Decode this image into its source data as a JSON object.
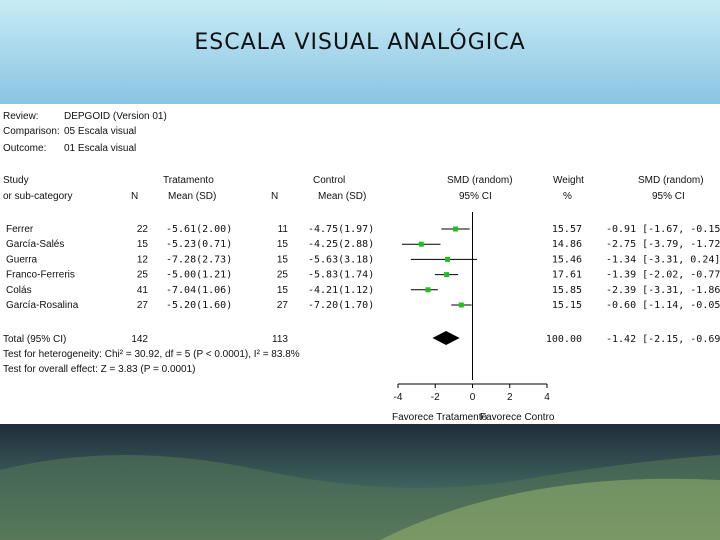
{
  "slide": {
    "title": "ESCALA VISUAL ANALÓGICA"
  },
  "meta": {
    "review_label": "Review:",
    "review_value": "DEPGOID (Version 01)",
    "comparison_label": "Comparison:",
    "comparison_value": "05 Escala visual",
    "outcome_label": "Outcome:",
    "outcome_value": "01 Escala visual"
  },
  "headers": {
    "study_1": "Study",
    "study_2": "or sub-category",
    "treatment_1": "Tratamento",
    "treatment_n": "N",
    "treatment_2": "Mean (SD)",
    "control_1": "Control",
    "control_n": "N",
    "control_2": "Mean (SD)",
    "smd_1": "SMD (random)",
    "smd_2": "95% CI",
    "weight_1": "Weight",
    "weight_2": "%",
    "smdci_1": "SMD (random)",
    "smdci_2": "95% CI"
  },
  "rows": [
    {
      "study": "Ferrer",
      "n_t": "22",
      "mean_t": "-5.61(2.00)",
      "n_c": "11",
      "mean_c": "-4.75(1.97)",
      "weight_text": "15.57",
      "ci_text": "-0.91 [-1.67, -0.15]"
    },
    {
      "study": "García-Salés",
      "n_t": "15",
      "mean_t": "-5.23(0.71)",
      "n_c": "15",
      "mean_c": "-4.25(2.88)",
      "weight_text": "14.86",
      "ci_text": "-2.75 [-3.79, -1.72]"
    },
    {
      "study": "Guerra",
      "n_t": "12",
      "mean_t": "-7.28(2.73)",
      "n_c": "15",
      "mean_c": "-5.63(3.18)",
      "weight_text": "15.46",
      "ci_text": "-1.34 [-3.31, 0.24]"
    },
    {
      "study": "Franco-Ferreris",
      "n_t": "25",
      "mean_t": "-5.00(1.21)",
      "n_c": "25",
      "mean_c": "-5.83(1.74)",
      "weight_text": "17.61",
      "ci_text": "-1.39 [-2.02, -0.77]"
    },
    {
      "study": "Colás",
      "n_t": "41",
      "mean_t": "-7.04(1.06)",
      "n_c": "15",
      "mean_c": "-4.21(1.12)",
      "weight_text": "15.85",
      "ci_text": "-2.39 [-3.31, -1.86]"
    },
    {
      "study": "García-Rosalina",
      "n_t": "27",
      "mean_t": "-5.20(1.60)",
      "n_c": "27",
      "mean_c": "-7.20(1.70)",
      "weight_text": "15.15",
      "ci_text": "-0.60 [-1.14, -0.05]"
    }
  ],
  "total": {
    "label": "Total (95% CI)",
    "n_t": "142",
    "n_c": "113",
    "weight_text": "100.00",
    "ci_text": "-1.42 [-2.15, -0.69]"
  },
  "footer": {
    "heterogeneity": "Test for heterogeneity: Chi² = 30.92, df = 5 (P < 0.0001), I² = 83.8%",
    "overall": "Test for overall effect: Z = 3.83 (P = 0.0001)"
  },
  "axis": {
    "favours_left": "Favorece Tratamento",
    "favours_right": "Favorece Contro"
  },
  "colors": {
    "marker": "#1ec01e",
    "line": "#000000",
    "diamond": "#000000"
  },
  "chart_data": {
    "type": "forest",
    "xlim": [
      -4,
      4
    ],
    "x_ticks": [
      "-4",
      "-2",
      "0",
      "2",
      "4"
    ],
    "studies": [
      "Ferrer",
      "García-Salés",
      "Guerra",
      "Franco-Ferreris",
      "Colás",
      "García-Rosalina"
    ],
    "smd": [
      -0.91,
      -2.75,
      -1.34,
      -1.39,
      -2.39,
      -0.6
    ],
    "ci_low": [
      -1.67,
      -3.79,
      -3.31,
      -2.02,
      -3.31,
      -1.14
    ],
    "ci_high": [
      -0.15,
      -1.72,
      0.24,
      -0.77,
      -1.86,
      -0.05
    ],
    "weight": [
      15.57,
      14.86,
      15.46,
      17.61,
      15.85,
      15.15
    ],
    "total": {
      "smd": -1.42,
      "ci_low": -2.15,
      "ci_high": -0.69
    }
  }
}
